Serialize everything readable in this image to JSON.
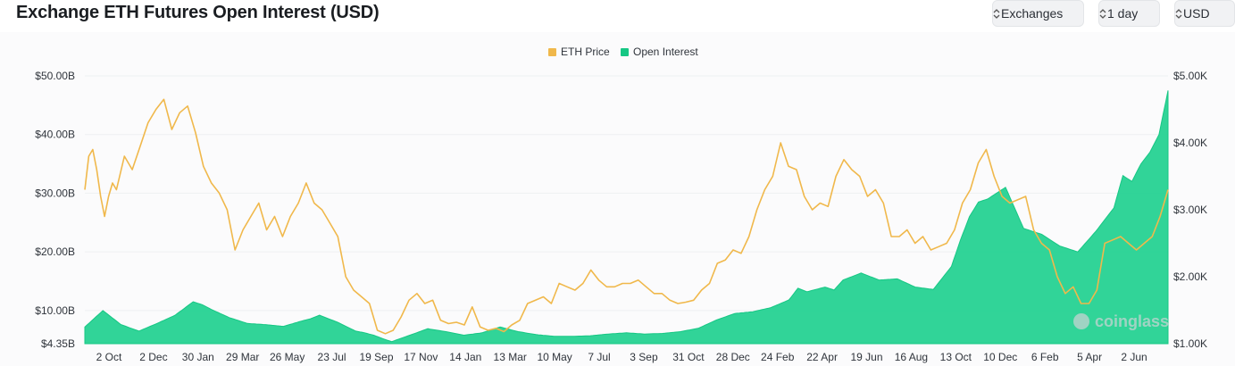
{
  "header": {
    "title": "Exchange ETH Futures Open Interest (USD)"
  },
  "toolbar": {
    "exchanges_label": "Exchanges",
    "interval_label": "1 day",
    "currency_label": "USD"
  },
  "watermark": {
    "text": "coinglass"
  },
  "colors": {
    "price": "#f0b84b",
    "open_interest": "#16c784",
    "open_interest_fill": "#1fd08f",
    "grid": "#eef0f2",
    "background": "#fbfbfc"
  },
  "chart_data": {
    "type": "area",
    "title": "Exchange ETH Futures Open Interest (USD)",
    "legend_position": "top-center",
    "grid": true,
    "x_tick_labels": [
      "2 Oct",
      "2 Dec",
      "30 Jan",
      "29 Mar",
      "26 May",
      "23 Jul",
      "19 Sep",
      "17 Nov",
      "14 Jan",
      "13 Mar",
      "10 May",
      "7 Jul",
      "3 Sep",
      "31 Oct",
      "28 Dec",
      "24 Feb",
      "22 Apr",
      "19 Jun",
      "16 Aug",
      "13 Oct",
      "10 Dec",
      "6 Feb",
      "5 Apr",
      "2 Jun"
    ],
    "y_left": {
      "label": "",
      "tick_labels": [
        "$50.00B",
        "$40.00B",
        "$30.00B",
        "$20.00B",
        "$10.00B",
        "$4.35B"
      ],
      "tick_values": [
        50,
        40,
        30,
        20,
        10,
        4.35
      ],
      "range": [
        4.35,
        50
      ]
    },
    "y_right": {
      "label": "",
      "tick_labels": [
        "$5.00K",
        "$4.00K",
        "$3.00K",
        "$2.00K",
        "$1.00K"
      ],
      "tick_values": [
        5000,
        4000,
        3000,
        2000,
        1000
      ],
      "range": [
        1000,
        5000
      ]
    },
    "series": [
      {
        "name": "Open Interest",
        "axis": "left",
        "kind": "area",
        "points": [
          [
            0,
            7.2
          ],
          [
            2,
            10
          ],
          [
            4,
            7.6
          ],
          [
            6,
            6.5
          ],
          [
            8,
            7.8
          ],
          [
            10,
            9.2
          ],
          [
            12,
            11.5
          ],
          [
            13,
            11
          ],
          [
            14,
            10.2
          ],
          [
            16,
            8.8
          ],
          [
            18,
            7.8
          ],
          [
            20,
            7.6
          ],
          [
            22,
            7.3
          ],
          [
            24,
            8.2
          ],
          [
            25,
            8.6
          ],
          [
            26,
            9.2
          ],
          [
            28,
            8
          ],
          [
            30,
            6.5
          ],
          [
            31,
            6.2
          ],
          [
            32,
            5.8
          ],
          [
            33,
            5.2
          ],
          [
            34,
            4.7
          ],
          [
            36,
            5.8
          ],
          [
            38,
            6.9
          ],
          [
            40,
            6.4
          ],
          [
            42,
            5.8
          ],
          [
            44,
            6.2
          ],
          [
            46,
            7.2
          ],
          [
            48,
            6.4
          ],
          [
            50,
            5.9
          ],
          [
            52,
            5.6
          ],
          [
            54,
            5.6
          ],
          [
            56,
            5.7
          ],
          [
            58,
            6
          ],
          [
            60,
            6.2
          ],
          [
            62,
            6
          ],
          [
            64,
            6.1
          ],
          [
            66,
            6.4
          ],
          [
            68,
            7
          ],
          [
            70,
            8.4
          ],
          [
            72,
            9.5
          ],
          [
            74,
            9.8
          ],
          [
            76,
            10.5
          ],
          [
            78,
            11.8
          ],
          [
            79,
            13.8
          ],
          [
            80,
            13.2
          ],
          [
            82,
            14
          ],
          [
            83,
            13.5
          ],
          [
            84,
            15.2
          ],
          [
            86,
            16.4
          ],
          [
            88,
            15.2
          ],
          [
            90,
            15.4
          ],
          [
            92,
            14
          ],
          [
            94,
            13.6
          ],
          [
            96,
            17.5
          ],
          [
            97,
            22
          ],
          [
            98,
            26
          ],
          [
            99,
            28.5
          ],
          [
            100,
            29
          ],
          [
            101,
            30
          ],
          [
            102,
            31
          ],
          [
            103,
            27.5
          ],
          [
            104,
            24
          ],
          [
            106,
            23
          ],
          [
            108,
            21
          ],
          [
            110,
            20
          ],
          [
            112,
            23.5
          ],
          [
            114,
            27.5
          ],
          [
            115,
            33
          ],
          [
            116,
            32
          ],
          [
            117,
            35
          ],
          [
            118,
            37
          ],
          [
            119,
            40
          ],
          [
            120,
            47.5
          ]
        ]
      },
      {
        "name": "ETH Price",
        "axis": "right",
        "kind": "line",
        "points": [
          [
            0,
            3300
          ],
          [
            0.5,
            3800
          ],
          [
            1,
            3900
          ],
          [
            1.5,
            3600
          ],
          [
            2,
            3200
          ],
          [
            2.5,
            2900
          ],
          [
            3,
            3200
          ],
          [
            3.5,
            3400
          ],
          [
            4,
            3300
          ],
          [
            5,
            3800
          ],
          [
            6,
            3600
          ],
          [
            7,
            3950
          ],
          [
            8,
            4300
          ],
          [
            9,
            4500
          ],
          [
            10,
            4650
          ],
          [
            11,
            4200
          ],
          [
            12,
            4450
          ],
          [
            13,
            4550
          ],
          [
            14,
            4150
          ],
          [
            15,
            3650
          ],
          [
            16,
            3400
          ],
          [
            17,
            3250
          ],
          [
            18,
            3000
          ],
          [
            19,
            2400
          ],
          [
            20,
            2700
          ],
          [
            21,
            2900
          ],
          [
            22,
            3100
          ],
          [
            23,
            2700
          ],
          [
            24,
            2900
          ],
          [
            25,
            2600
          ],
          [
            26,
            2900
          ],
          [
            27,
            3100
          ],
          [
            28,
            3400
          ],
          [
            29,
            3100
          ],
          [
            30,
            3000
          ],
          [
            31,
            2800
          ],
          [
            32,
            2600
          ],
          [
            33,
            2000
          ],
          [
            34,
            1800
          ],
          [
            35,
            1700
          ],
          [
            36,
            1600
          ],
          [
            37,
            1200
          ],
          [
            38,
            1150
          ],
          [
            39,
            1200
          ],
          [
            40,
            1400
          ],
          [
            41,
            1650
          ],
          [
            42,
            1750
          ],
          [
            43,
            1600
          ],
          [
            44,
            1650
          ],
          [
            45,
            1350
          ],
          [
            46,
            1300
          ],
          [
            47,
            1320
          ],
          [
            48,
            1280
          ],
          [
            49,
            1550
          ],
          [
            50,
            1250
          ],
          [
            51,
            1200
          ],
          [
            52,
            1230
          ],
          [
            53,
            1180
          ],
          [
            54,
            1280
          ],
          [
            55,
            1350
          ],
          [
            56,
            1600
          ],
          [
            57,
            1650
          ],
          [
            58,
            1700
          ],
          [
            59,
            1600
          ],
          [
            60,
            1900
          ],
          [
            61,
            1850
          ],
          [
            62,
            1800
          ],
          [
            63,
            1900
          ],
          [
            64,
            2100
          ],
          [
            65,
            1950
          ],
          [
            66,
            1850
          ],
          [
            67,
            1850
          ],
          [
            68,
            1900
          ],
          [
            69,
            1900
          ],
          [
            70,
            1950
          ],
          [
            71,
            1850
          ],
          [
            72,
            1750
          ],
          [
            73,
            1750
          ],
          [
            74,
            1650
          ],
          [
            75,
            1600
          ],
          [
            76,
            1620
          ],
          [
            77,
            1650
          ],
          [
            78,
            1800
          ],
          [
            79,
            1900
          ],
          [
            80,
            2200
          ],
          [
            81,
            2250
          ],
          [
            82,
            2400
          ],
          [
            83,
            2350
          ],
          [
            84,
            2600
          ],
          [
            85,
            3000
          ],
          [
            86,
            3300
          ],
          [
            87,
            3500
          ],
          [
            88,
            4000
          ],
          [
            89,
            3650
          ],
          [
            90,
            3600
          ],
          [
            91,
            3200
          ],
          [
            92,
            3000
          ],
          [
            93,
            3100
          ],
          [
            94,
            3050
          ],
          [
            95,
            3500
          ],
          [
            96,
            3750
          ],
          [
            97,
            3600
          ],
          [
            98,
            3500
          ],
          [
            99,
            3200
          ],
          [
            100,
            3300
          ],
          [
            101,
            3100
          ],
          [
            102,
            2600
          ],
          [
            103,
            2600
          ],
          [
            104,
            2700
          ],
          [
            105,
            2500
          ],
          [
            106,
            2600
          ],
          [
            107,
            2400
          ],
          [
            108,
            2450
          ],
          [
            109,
            2500
          ],
          [
            110,
            2700
          ],
          [
            111,
            3100
          ],
          [
            112,
            3300
          ],
          [
            113,
            3700
          ],
          [
            114,
            3900
          ],
          [
            115,
            3500
          ],
          [
            116,
            3200
          ],
          [
            117,
            3100
          ],
          [
            118,
            3150
          ],
          [
            119,
            3200
          ],
          [
            120,
            2700
          ],
          [
            121,
            2500
          ],
          [
            122,
            2400
          ],
          [
            123,
            2000
          ],
          [
            124,
            1750
          ],
          [
            125,
            1850
          ],
          [
            126,
            1600
          ],
          [
            127,
            1600
          ],
          [
            128,
            1800
          ],
          [
            129,
            2500
          ],
          [
            130,
            2550
          ],
          [
            131,
            2600
          ],
          [
            132,
            2500
          ],
          [
            133,
            2400
          ],
          [
            134,
            2500
          ],
          [
            135,
            2600
          ],
          [
            136,
            2900
          ],
          [
            137,
            3300
          ]
        ]
      }
    ]
  }
}
